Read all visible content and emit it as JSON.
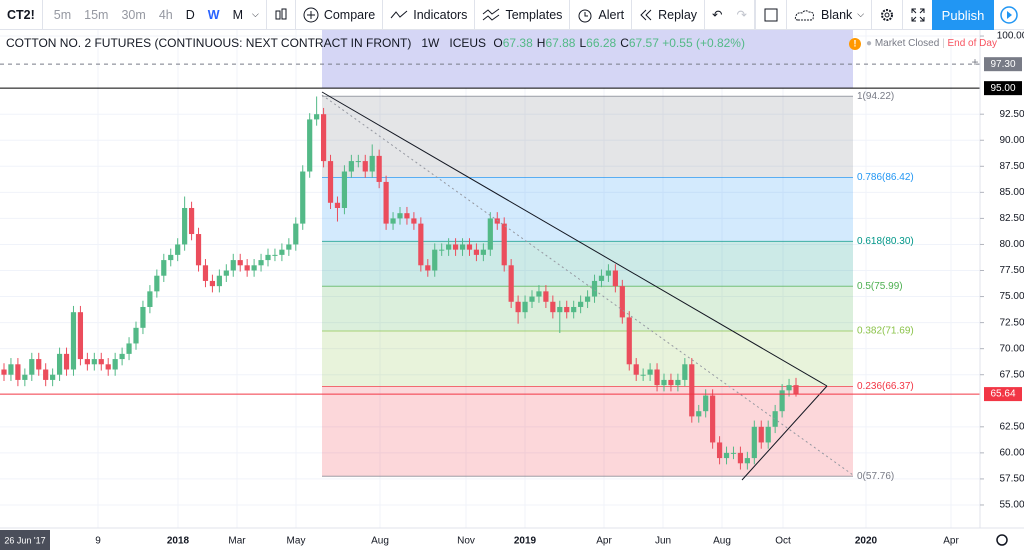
{
  "toolbar": {
    "symbol": "CT2!",
    "intervals": [
      "5m",
      "15m",
      "30m",
      "4h",
      "D",
      "W",
      "M"
    ],
    "active_interval": "W",
    "buttons": [
      "Compare",
      "Indicators",
      "Templates",
      "Alert",
      "Replay"
    ],
    "layout": "Blank",
    "publish": "Publish"
  },
  "legend": {
    "title": "COTTON NO. 2 FUTURES (CONTINUOUS: NEXT CONTRACT IN FRONT)",
    "interval": "1W",
    "exchange": "ICEUS",
    "ohlc": [
      {
        "key": "O",
        "value": 67.38
      },
      {
        "key": "H",
        "value": 67.88
      },
      {
        "key": "L",
        "value": 66.28
      },
      {
        "key": "C",
        "value": 67.57
      }
    ],
    "change": "+0.55 (+0.82%)",
    "status": "Market Closed",
    "session": "End of Day"
  },
  "chart_data": {
    "type": "candlestick",
    "up_color": "#53b987",
    "down_color": "#eb4d5c",
    "grid": true,
    "ylim": [
      52.79,
      100.58
    ],
    "yticks": [
      {
        "value": 100,
        "label": "100.00"
      },
      {
        "value": 92.5,
        "label": "92.50"
      },
      {
        "value": 90,
        "label": "90.00"
      },
      {
        "value": 87.5,
        "label": "87.50"
      },
      {
        "value": 85,
        "label": "85.00"
      },
      {
        "value": 82.5,
        "label": "82.50"
      },
      {
        "value": 80,
        "label": "80.00"
      },
      {
        "value": 77.5,
        "label": "77.50"
      },
      {
        "value": 75,
        "label": "75.00"
      },
      {
        "value": 72.5,
        "label": "72.50"
      },
      {
        "value": 70,
        "label": "70.00"
      },
      {
        "value": 67.5,
        "label": "67.50"
      },
      {
        "value": 62.5,
        "label": "62.50"
      },
      {
        "value": 60,
        "label": "60.00"
      },
      {
        "value": 57.5,
        "label": "57.50"
      },
      {
        "value": 55,
        "label": "55.00"
      }
    ],
    "cursor_date": "26 Jun '17",
    "x_labels": [
      "9",
      "2018",
      "Mar",
      "May",
      "Aug",
      "Nov",
      "2019",
      "Apr",
      "Jun",
      "Aug",
      "Oct",
      "2020",
      "Apr"
    ],
    "price_lines": [
      {
        "label": "97.30",
        "value": 97.3,
        "color": "#787b86",
        "dashed": true
      },
      {
        "label": "95.00",
        "value": 95,
        "color": "#000000",
        "dashed": false
      },
      {
        "label": "65.64",
        "value": 65.64,
        "color": "#f23645",
        "dashed": false
      }
    ],
    "fib_levels": [
      {
        "label": "1(94.22)",
        "value": 94.22,
        "color": "#787b86"
      },
      {
        "label": "0.786(86.42)",
        "value": 86.42,
        "color": "#2196f3"
      },
      {
        "label": "0.618(80.30)",
        "value": 80.3,
        "color": "#009688"
      },
      {
        "label": "0.5(75.99)",
        "value": 75.99,
        "color": "#4caf50"
      },
      {
        "label": "0.382(71.69)",
        "value": 71.69,
        "color": "#8bc34a"
      },
      {
        "label": "0.236(66.37)",
        "value": 66.37,
        "color": "#f23645"
      },
      {
        "label": "0(57.76)",
        "value": 57.76,
        "color": "#787b86"
      }
    ],
    "ohlc": [
      [
        68,
        68.6,
        66.9,
        67.5
      ],
      [
        67.5,
        69.1,
        66.9,
        68.5
      ],
      [
        68.5,
        69.1,
        66.4,
        67
      ],
      [
        67,
        68.1,
        66.4,
        67.5
      ],
      [
        67.5,
        69.6,
        66.9,
        69
      ],
      [
        69,
        69.6,
        67.4,
        68
      ],
      [
        68,
        68.6,
        66.4,
        67
      ],
      [
        67,
        68.1,
        66.4,
        67.5
      ],
      [
        67.5,
        70.1,
        66.9,
        69.5
      ],
      [
        69.5,
        70.1,
        67.4,
        68
      ],
      [
        68,
        74.1,
        67.4,
        73.5
      ],
      [
        73.5,
        74.1,
        68.4,
        69
      ],
      [
        69,
        69.6,
        67.9,
        68.5
      ],
      [
        68.5,
        69.6,
        67.9,
        69
      ],
      [
        69,
        69.6,
        67.9,
        68.5
      ],
      [
        68.5,
        69.1,
        67.4,
        68
      ],
      [
        68,
        69.6,
        67.4,
        69
      ],
      [
        69,
        70.1,
        68.4,
        69.5
      ],
      [
        69.5,
        71.1,
        68.9,
        70.5
      ],
      [
        70.5,
        72.6,
        69.9,
        72
      ],
      [
        72,
        74.6,
        71.4,
        74
      ],
      [
        74,
        76.1,
        73.4,
        75.5
      ],
      [
        75.5,
        77.6,
        74.9,
        77
      ],
      [
        77,
        79.1,
        76.4,
        78.5
      ],
      [
        78.5,
        79.6,
        77.9,
        79
      ],
      [
        79,
        80.6,
        78.4,
        80
      ],
      [
        80,
        84.6,
        79.4,
        83.5
      ],
      [
        83.5,
        84.1,
        80.4,
        81
      ],
      [
        81,
        81.6,
        77.4,
        78
      ],
      [
        78,
        78.6,
        75.9,
        76.5
      ],
      [
        76.5,
        77.1,
        75.4,
        76
      ],
      [
        76,
        77.6,
        75.4,
        77
      ],
      [
        77,
        78.1,
        76.4,
        77.5
      ],
      [
        77.5,
        79.1,
        76.9,
        78.5
      ],
      [
        78.5,
        79.1,
        77.4,
        78
      ],
      [
        78,
        78.6,
        76.9,
        77.5
      ],
      [
        77.5,
        78.6,
        76.9,
        78
      ],
      [
        78,
        79.1,
        77.4,
        78.5
      ],
      [
        78.5,
        79.6,
        77.9,
        79
      ],
      [
        79,
        79.6,
        78.4,
        79
      ],
      [
        79,
        80.1,
        78.4,
        79.5
      ],
      [
        79.5,
        80.6,
        78.9,
        80
      ],
      [
        80,
        82.6,
        79.4,
        82
      ],
      [
        82,
        87.6,
        81.4,
        87
      ],
      [
        87,
        92.6,
        86.4,
        92
      ],
      [
        92,
        94.2,
        91.4,
        92.5
      ],
      [
        92.5,
        93.1,
        87.4,
        88
      ],
      [
        88,
        88.6,
        83.4,
        84
      ],
      [
        84,
        84.6,
        82.2,
        83.5
      ],
      [
        83.5,
        87.6,
        82.9,
        87
      ],
      [
        87,
        88.6,
        86.4,
        88
      ],
      [
        88,
        88.6,
        87.4,
        88
      ],
      [
        88,
        88.6,
        86.4,
        87
      ],
      [
        87,
        89.6,
        86.4,
        88.5
      ],
      [
        88.5,
        89.1,
        85.4,
        86
      ],
      [
        86,
        86.6,
        81.4,
        82
      ],
      [
        82,
        83.1,
        81.4,
        82.5
      ],
      [
        82.5,
        83.6,
        81.9,
        83
      ],
      [
        83,
        83.6,
        81.9,
        82.5
      ],
      [
        82.5,
        83.1,
        81.4,
        82
      ],
      [
        82,
        82.6,
        77.4,
        78
      ],
      [
        78,
        78.6,
        76.9,
        77.5
      ],
      [
        77.5,
        80.1,
        76.9,
        79.5
      ],
      [
        79.5,
        80.1,
        78.9,
        79.5
      ],
      [
        79.5,
        80.6,
        78.9,
        80
      ],
      [
        80,
        80.6,
        78.9,
        79.5
      ],
      [
        79.5,
        80.6,
        78.9,
        80
      ],
      [
        80,
        80.6,
        78.9,
        79.5
      ],
      [
        79.5,
        80.1,
        78.4,
        79
      ],
      [
        79,
        80.1,
        78.4,
        79.5
      ],
      [
        79.5,
        83.1,
        78.9,
        82.5
      ],
      [
        82.5,
        83.1,
        81.4,
        82
      ],
      [
        82,
        82.6,
        77.4,
        78
      ],
      [
        78,
        78.6,
        73.9,
        74.5
      ],
      [
        74.5,
        75.1,
        72.4,
        73.5
      ],
      [
        73.5,
        75.1,
        72.9,
        74.5
      ],
      [
        74.5,
        75.6,
        73.9,
        75
      ],
      [
        75,
        76.1,
        74.4,
        75.5
      ],
      [
        75.5,
        76.1,
        73.9,
        74.5
      ],
      [
        74.5,
        75.1,
        72.9,
        73.5
      ],
      [
        73.5,
        74.6,
        71.5,
        74
      ],
      [
        74,
        74.6,
        72.9,
        73.5
      ],
      [
        73.5,
        74.6,
        72.9,
        74
      ],
      [
        74,
        75.1,
        73.4,
        74.5
      ],
      [
        74.5,
        75.6,
        73.9,
        75
      ],
      [
        75,
        77.1,
        74.4,
        76.5
      ],
      [
        76.5,
        77.6,
        75.9,
        77
      ],
      [
        77,
        78.1,
        76.4,
        77.5
      ],
      [
        77.5,
        78.1,
        75.4,
        76
      ],
      [
        76,
        76.6,
        72.4,
        73
      ],
      [
        73,
        73.6,
        67.9,
        68.5
      ],
      [
        68.5,
        69.1,
        66.9,
        67.5
      ],
      [
        67.5,
        68.1,
        66.9,
        67.5
      ],
      [
        67.5,
        68.6,
        66.9,
        68
      ],
      [
        68,
        68.6,
        65.9,
        66.5
      ],
      [
        66.5,
        67.6,
        65.9,
        67
      ],
      [
        67,
        67.6,
        65.9,
        66.5
      ],
      [
        66.5,
        67.6,
        65.9,
        67
      ],
      [
        67,
        69.1,
        66.4,
        68.5
      ],
      [
        68.5,
        69.1,
        62.9,
        63.5
      ],
      [
        63.5,
        64.6,
        62.9,
        64
      ],
      [
        64,
        66.1,
        63.4,
        65.5
      ],
      [
        65.5,
        66.1,
        60.4,
        61
      ],
      [
        61,
        61.6,
        58.9,
        59.5
      ],
      [
        59.5,
        60.6,
        58.9,
        60
      ],
      [
        60,
        60.6,
        59.4,
        60
      ],
      [
        60,
        60.6,
        58.4,
        59
      ],
      [
        59,
        60.1,
        58.4,
        59.5
      ],
      [
        59.5,
        63.1,
        58.9,
        62.5
      ],
      [
        62.5,
        63.1,
        60.4,
        61
      ],
      [
        61,
        63.1,
        60.4,
        62.5
      ],
      [
        62.5,
        64.6,
        61.9,
        64
      ],
      [
        64,
        66.6,
        63.4,
        66
      ],
      [
        66,
        67.1,
        65.4,
        66.5
      ],
      [
        66.5,
        67.2,
        65.4,
        65.6
      ]
    ]
  }
}
